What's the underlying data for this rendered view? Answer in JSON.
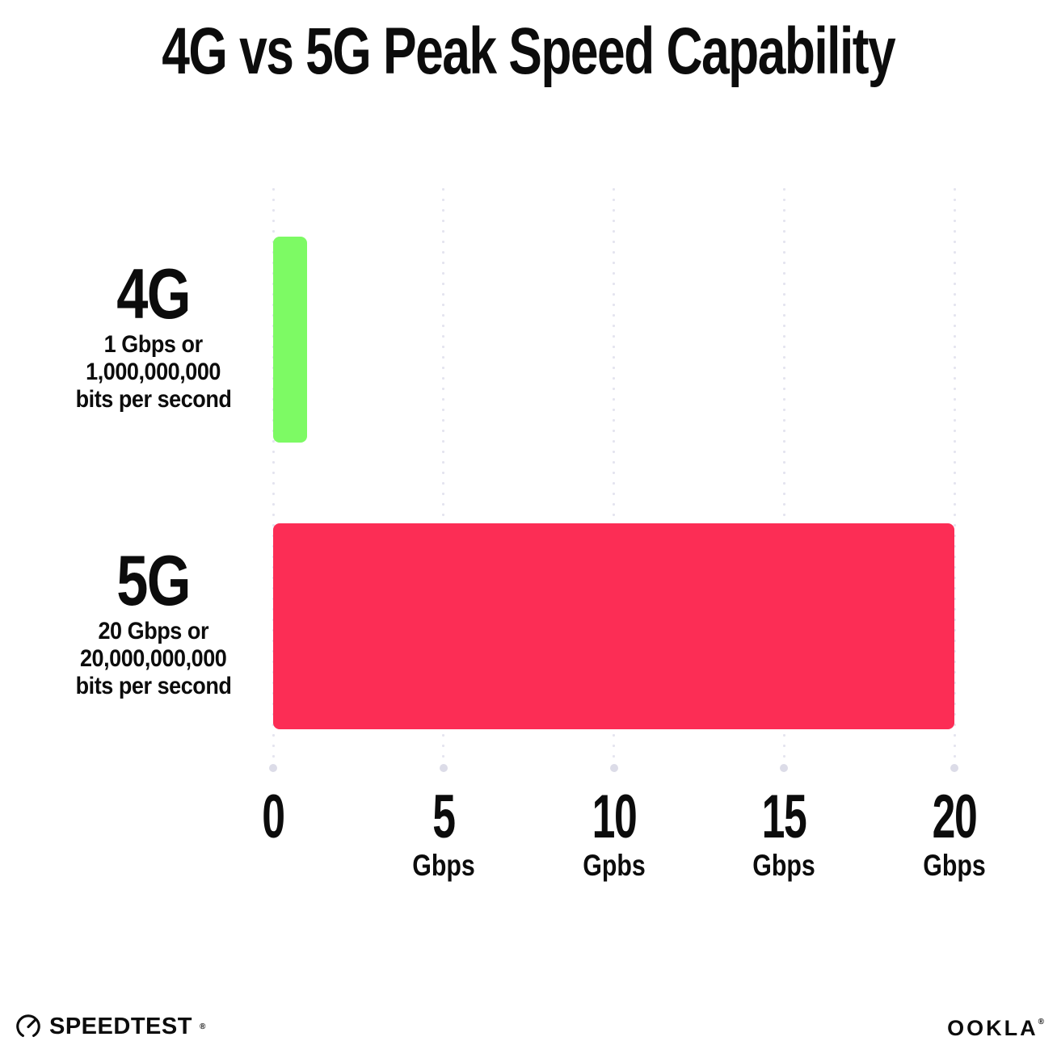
{
  "chart_data": {
    "type": "bar",
    "orientation": "horizontal",
    "title": "4G vs 5G Peak Speed Capability",
    "xlim": [
      0,
      20
    ],
    "grid": "dotted-vertical-gridlines",
    "legend": "none",
    "categories": [
      "4G",
      "5G"
    ],
    "values": [
      1,
      20
    ],
    "rows": [
      {
        "category": "4G",
        "value": 1,
        "color": "#7dfa64",
        "desc_lines": [
          "1 Gbps or",
          "1,000,000,000",
          "bits per second"
        ]
      },
      {
        "category": "5G",
        "value": 20,
        "color": "#fc2d55",
        "desc_lines": [
          "20 Gbps or",
          "20,000,000,000",
          "bits per second"
        ]
      }
    ],
    "x_ticks": [
      {
        "value": 0,
        "label": "0",
        "unit": ""
      },
      {
        "value": 5,
        "label": "5",
        "unit": "Gbps"
      },
      {
        "value": 10,
        "label": "10",
        "unit": "Gpbs"
      },
      {
        "value": 15,
        "label": "15",
        "unit": "Gbps"
      },
      {
        "value": 20,
        "label": "20",
        "unit": "Gbps"
      }
    ]
  },
  "footer": {
    "speedtest_label": "SPEEDTEST",
    "speedtest_trademark": "®",
    "ookla_label": "OOKLA",
    "ookla_trademark": "®"
  },
  "palette": {
    "background": "#ffffff",
    "text": "#0c0c0c",
    "grid_dot": "#e4e4ef",
    "grid_end_dot": "#dcdce8",
    "bar_4g": "#7dfa64",
    "bar_5g": "#fc2d55"
  }
}
